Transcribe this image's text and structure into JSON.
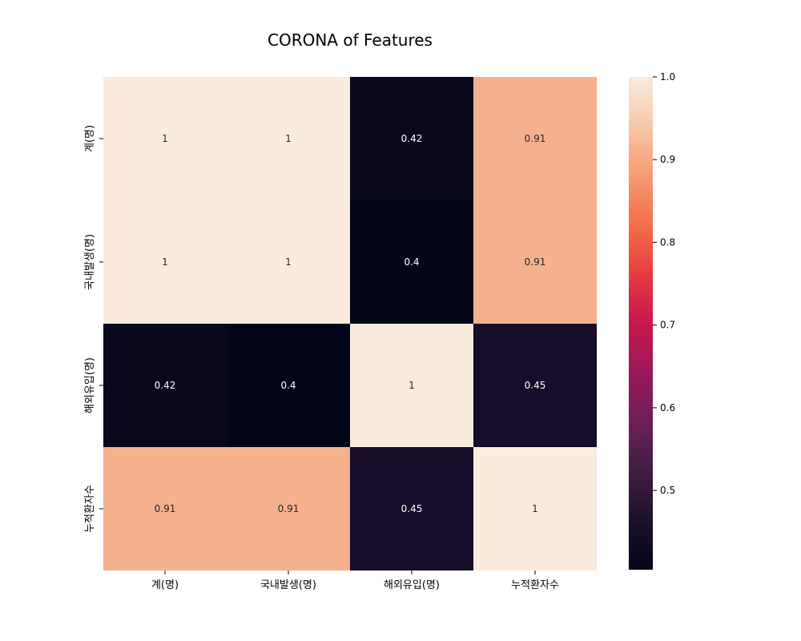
{
  "chart_data": {
    "type": "heatmap",
    "title": "CORONA of Features",
    "xlabel": "",
    "ylabel": "",
    "x_categories": [
      "계(명)",
      "국내발생(명)",
      "해외유입(명)",
      "누적환자수"
    ],
    "y_categories": [
      "계(명)",
      "국내발생(명)",
      "해외유입(명)",
      "누적환자수"
    ],
    "values": [
      [
        1,
        1,
        0.42,
        0.91
      ],
      [
        1,
        1,
        0.4,
        0.91
      ],
      [
        0.42,
        0.4,
        1,
        0.45
      ],
      [
        0.91,
        0.91,
        0.45,
        1
      ]
    ],
    "annotations": [
      [
        "1",
        "1",
        "0.42",
        "0.91"
      ],
      [
        "1",
        "1",
        "0.4",
        "0.91"
      ],
      [
        "0.42",
        "0.4",
        "1",
        "0.45"
      ],
      [
        "0.91",
        "0.91",
        "0.45",
        "1"
      ]
    ],
    "colormap": "rocket",
    "colorbar": {
      "min": 0.4042,
      "max": 1.0,
      "ticks": [
        0.5,
        0.6,
        0.7,
        0.8,
        0.9,
        1.0
      ],
      "tick_labels": [
        "0.5",
        "0.6",
        "0.7",
        "0.8",
        "0.9",
        "1.0"
      ],
      "placement": "right"
    },
    "grid": false,
    "legend": "colorbar-right"
  }
}
